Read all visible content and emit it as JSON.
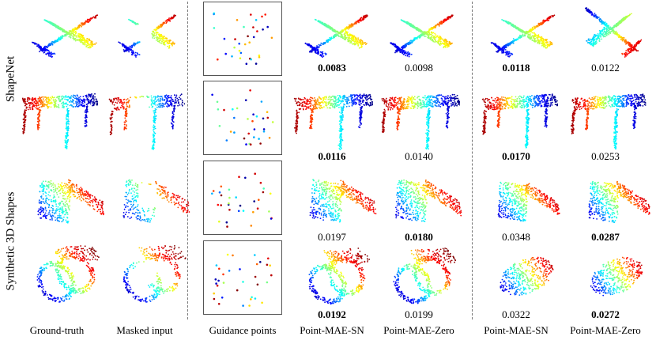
{
  "row_groups": [
    {
      "label": "ShapeNet"
    },
    {
      "label": "Synthetic 3D Shapes"
    }
  ],
  "columns": [
    {
      "label": "Ground-truth"
    },
    {
      "label": "Masked input"
    },
    {
      "label": "Guidance points"
    },
    {
      "label": "Point-MAE-SN"
    },
    {
      "label": "Point-MAE-Zero"
    },
    {
      "label": "Point-MAE-SN"
    },
    {
      "label": "Point-MAE-Zero"
    }
  ],
  "scores": [
    {
      "row": "airplane",
      "values": [
        "0.0083",
        "0.0098",
        "0.0118",
        "0.0122"
      ],
      "bold": [
        true,
        false,
        true,
        false
      ]
    },
    {
      "row": "table",
      "values": [
        "0.0116",
        "0.0140",
        "0.0170",
        "0.0253"
      ],
      "bold": [
        true,
        false,
        true,
        false
      ]
    },
    {
      "row": "synthetic-1",
      "values": [
        "0.0197",
        "0.0180",
        "0.0348",
        "0.0287"
      ],
      "bold": [
        false,
        true,
        false,
        true
      ]
    },
    {
      "row": "synthetic-2",
      "values": [
        "0.0192",
        "0.0199",
        "0.0322",
        "0.0272"
      ],
      "bold": [
        true,
        false,
        false,
        true
      ]
    }
  ],
  "colormap": [
    "#00007f",
    "#0000ff",
    "#00ffff",
    "#ffff00",
    "#ff0000",
    "#7f0000"
  ]
}
